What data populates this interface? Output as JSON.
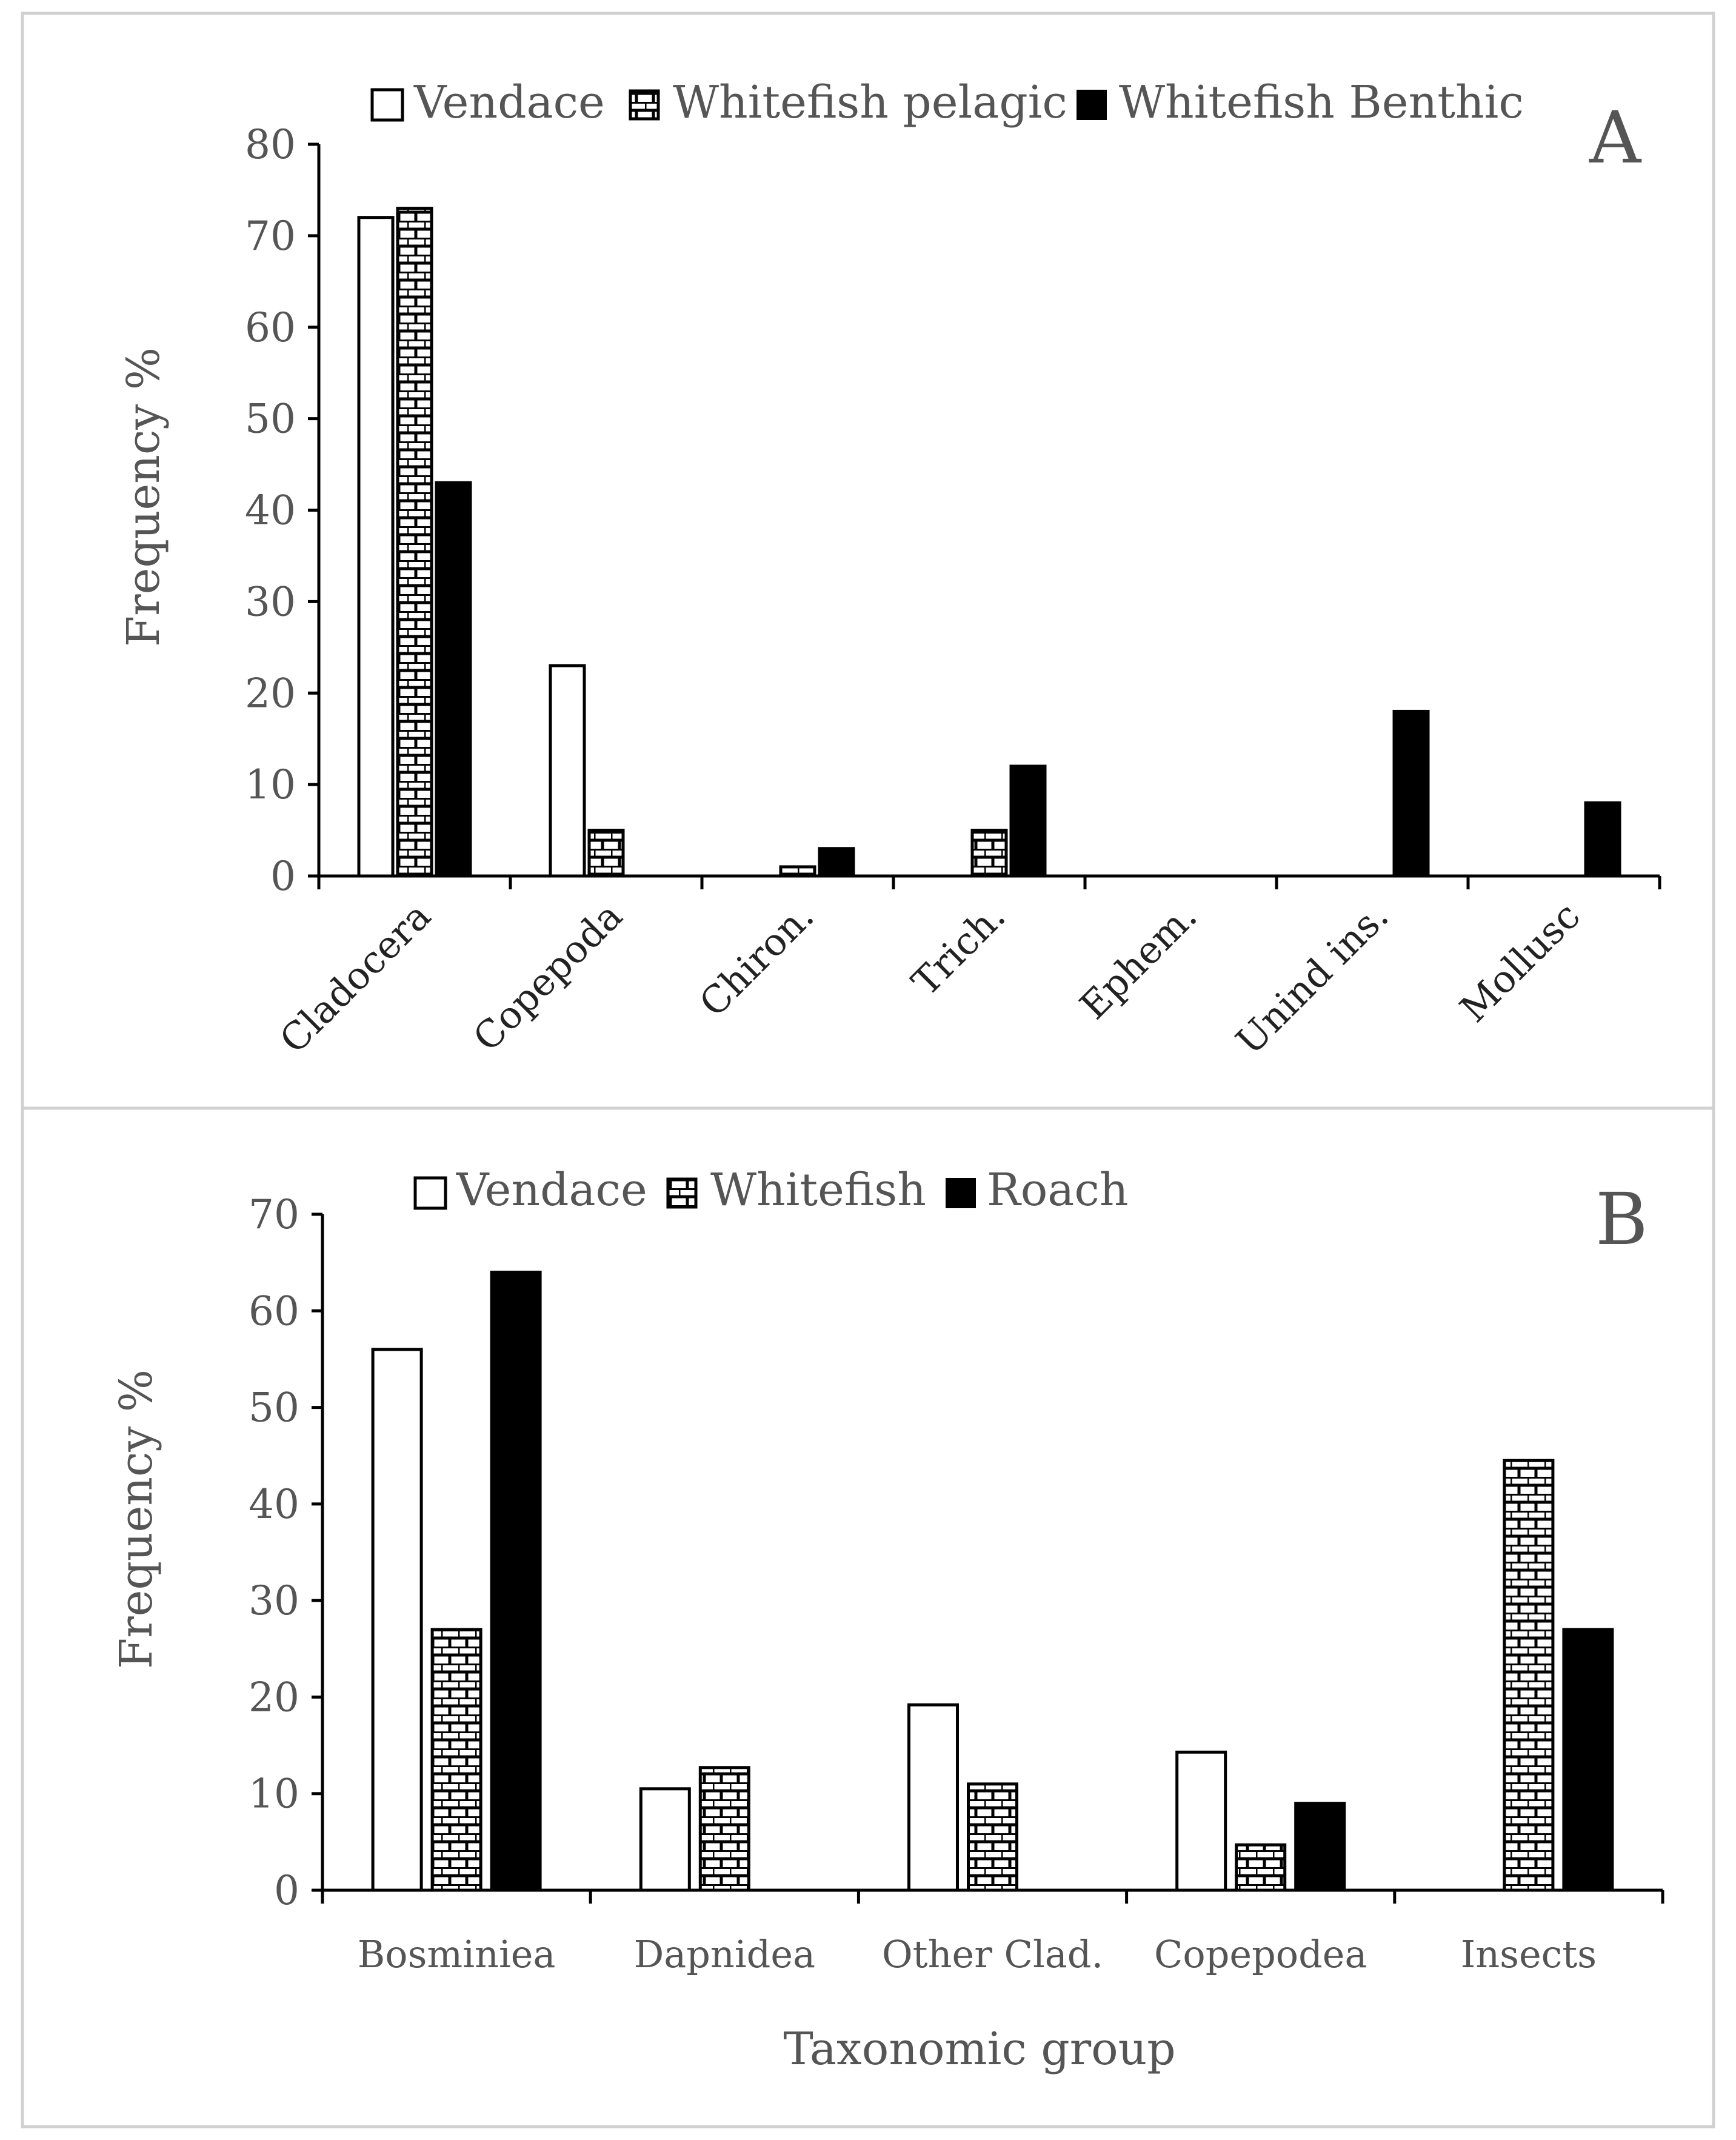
{
  "chart_data": [
    {
      "panel": "A",
      "type": "bar",
      "ylabel": "Frequency %",
      "xlabel": "",
      "ylim": [
        0,
        80
      ],
      "yticks": [
        0,
        10,
        20,
        30,
        40,
        50,
        60,
        70,
        80
      ],
      "legend_position": "top",
      "categories": [
        "Cladocera",
        "Copepoda",
        "Chiron.",
        "Trich.",
        "Ephem.",
        "Unind ins.",
        "Mollusc"
      ],
      "series": [
        {
          "name": "Vendace",
          "pattern": "white",
          "values": [
            72,
            23,
            0,
            0,
            0,
            0,
            0
          ]
        },
        {
          "name": "Whitefish pelagic",
          "pattern": "brick",
          "values": [
            73,
            5,
            1,
            5,
            0,
            0,
            0
          ]
        },
        {
          "name": "Whitefish Benthic",
          "pattern": "black",
          "values": [
            43,
            0,
            3,
            12,
            0,
            18,
            8
          ]
        }
      ]
    },
    {
      "panel": "B",
      "type": "bar",
      "ylabel": "Frequency %",
      "xlabel": "Taxonomic group",
      "ylim": [
        0,
        70
      ],
      "yticks": [
        0,
        10,
        20,
        30,
        40,
        50,
        60,
        70
      ],
      "legend_position": "top",
      "categories": [
        "Bosminiea",
        "Dapnidea",
        "Other Clad.",
        "Copepodea",
        "Insects"
      ],
      "series": [
        {
          "name": "Vendace",
          "pattern": "white",
          "values": [
            56,
            10.5,
            19.2,
            14.3,
            0
          ]
        },
        {
          "name": "Whitefish",
          "pattern": "brick",
          "values": [
            27,
            12.7,
            11,
            4.7,
            44.5
          ]
        },
        {
          "name": "Roach",
          "pattern": "black",
          "values": [
            64,
            0,
            0,
            9,
            27
          ]
        }
      ]
    }
  ],
  "colors": {
    "bar_outline": "#000000",
    "bar_black": "#000000",
    "bar_white": "#ffffff",
    "text": "#555555",
    "frame": "#d0d0d0"
  }
}
